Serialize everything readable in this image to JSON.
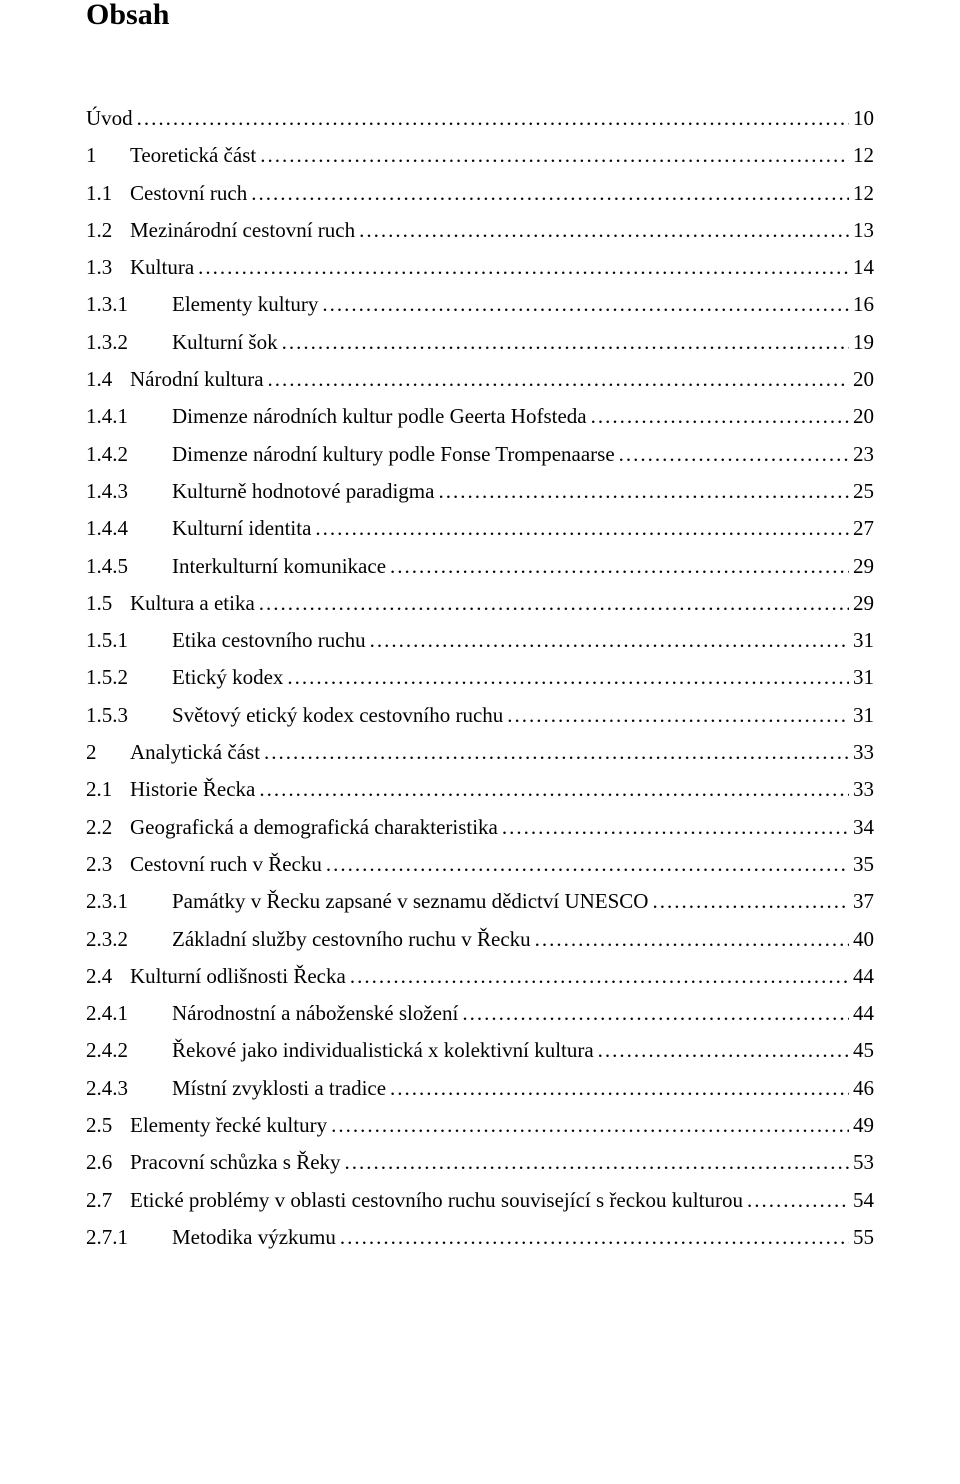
{
  "title": "Obsah",
  "entries": [
    {
      "level": 0,
      "num": "",
      "label": "Úvod",
      "page": "10"
    },
    {
      "level": 1,
      "num": "1",
      "label": "Teoretická část",
      "page": "12"
    },
    {
      "level": 2,
      "num": "1.1",
      "label": "Cestovní ruch",
      "page": "12"
    },
    {
      "level": 2,
      "num": "1.2",
      "label": "Mezinárodní cestovní ruch",
      "page": "13"
    },
    {
      "level": 2,
      "num": "1.3",
      "label": "Kultura",
      "page": "14"
    },
    {
      "level": 3,
      "num": "1.3.1",
      "label": "Elementy kultury",
      "page": "16"
    },
    {
      "level": 3,
      "num": "1.3.2",
      "label": "Kulturní šok",
      "page": "19"
    },
    {
      "level": 2,
      "num": "1.4",
      "label": "Národní kultura",
      "page": "20"
    },
    {
      "level": 3,
      "num": "1.4.1",
      "label": "Dimenze národních kultur podle Geerta Hofsteda",
      "page": "20"
    },
    {
      "level": 3,
      "num": "1.4.2",
      "label": "Dimenze národní kultury podle Fonse Trompenaarse",
      "page": "23"
    },
    {
      "level": 3,
      "num": "1.4.3",
      "label": "Kulturně hodnotové paradigma",
      "page": "25"
    },
    {
      "level": 3,
      "num": "1.4.4",
      "label": "Kulturní identita",
      "page": "27"
    },
    {
      "level": 3,
      "num": "1.4.5",
      "label": "Interkulturní komunikace",
      "page": "29"
    },
    {
      "level": 2,
      "num": "1.5",
      "label": "Kultura a etika",
      "page": "29"
    },
    {
      "level": 3,
      "num": "1.5.1",
      "label": "Etika cestovního ruchu",
      "page": "31"
    },
    {
      "level": 3,
      "num": "1.5.2",
      "label": "Etický kodex",
      "page": "31"
    },
    {
      "level": 3,
      "num": "1.5.3",
      "label": "Světový etický kodex cestovního ruchu",
      "page": "31"
    },
    {
      "level": 1,
      "num": "2",
      "label": "Analytická část",
      "page": "33"
    },
    {
      "level": 2,
      "num": "2.1",
      "label": "Historie Řecka",
      "page": "33"
    },
    {
      "level": 2,
      "num": "2.2",
      "label": "Geografická a demografická charakteristika",
      "page": "34"
    },
    {
      "level": 2,
      "num": "2.3",
      "label": "Cestovní ruch v Řecku",
      "page": "35"
    },
    {
      "level": 3,
      "num": "2.3.1",
      "label": "Památky v Řecku zapsané v seznamu dědictví UNESCO",
      "page": "37"
    },
    {
      "level": 3,
      "num": "2.3.2",
      "label": "Základní služby cestovního ruchu v Řecku",
      "page": "40"
    },
    {
      "level": 2,
      "num": "2.4",
      "label": "Kulturní odlišnosti Řecka",
      "page": "44"
    },
    {
      "level": 3,
      "num": "2.4.1",
      "label": "Národnostní a náboženské složení",
      "page": "44"
    },
    {
      "level": 3,
      "num": "2.4.2",
      "label": "Řekové jako individualistická x kolektivní kultura",
      "page": "45"
    },
    {
      "level": 3,
      "num": "2.4.3",
      "label": "Místní zvyklosti a tradice",
      "page": "46"
    },
    {
      "level": 2,
      "num": "2.5",
      "label": "Elementy řecké kultury",
      "page": "49"
    },
    {
      "level": 2,
      "num": "2.6",
      "label": "Pracovní schůzka s Řeky",
      "page": "53"
    },
    {
      "level": 2,
      "num": "2.7",
      "label": "Etické problémy v oblasti cestovního ruchu související s řeckou kulturou",
      "page": "54"
    },
    {
      "level": 3,
      "num": "2.7.1",
      "label": "Metodika výzkumu",
      "page": "55"
    }
  ]
}
